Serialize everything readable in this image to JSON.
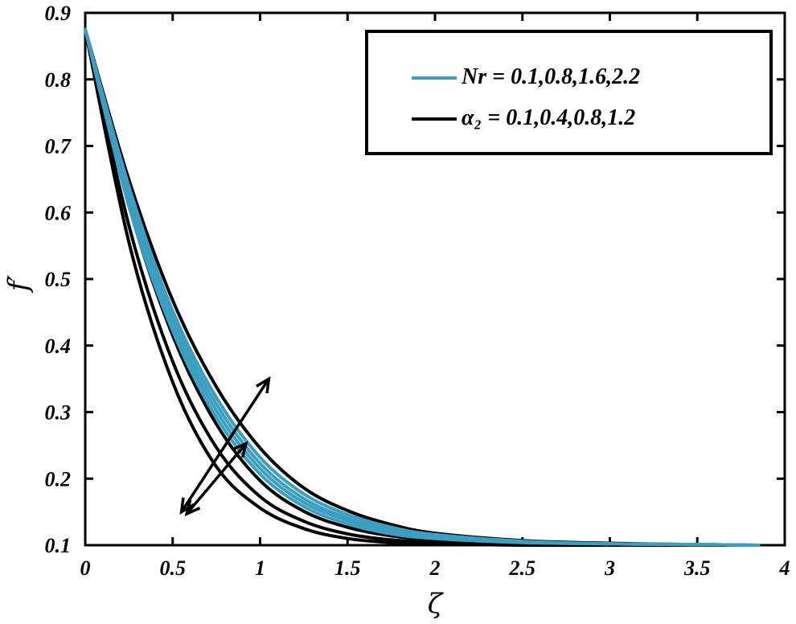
{
  "chart_data": {
    "type": "line",
    "xlabel": "ζ",
    "ylabel": "f′",
    "xlim": [
      0,
      4
    ],
    "ylim": [
      0.1,
      0.9
    ],
    "xticks": [
      0,
      0.5,
      1,
      1.5,
      2,
      2.5,
      3,
      3.5,
      4
    ],
    "xtick_labels": [
      "0",
      "0.5",
      "1",
      "1.5",
      "2",
      "2.5",
      "3",
      "3.5",
      "4"
    ],
    "yticks": [
      0.1,
      0.2,
      0.3,
      0.4,
      0.5,
      0.6,
      0.7,
      0.8,
      0.9
    ],
    "ytick_labels": [
      "0.1",
      "0.2",
      "0.3",
      "0.4",
      "0.5",
      "0.6",
      "0.7",
      "0.8",
      "0.9"
    ],
    "legend_position": "top-right",
    "legend": [
      {
        "label": "Nr = 0.1,0.8,1.6,2.2",
        "color": "#3a9fc0"
      },
      {
        "label": "α₂ = 0.1,0.4,0.8,1.2",
        "color": "#000000"
      }
    ],
    "series_groups": [
      {
        "legend_label": "Nr = 0.1,0.8,1.6,2.2",
        "color": "#3a9fc0",
        "x": [
          0,
          0.25,
          0.5,
          0.75,
          1.0,
          1.25,
          1.5,
          1.75,
          2.0,
          2.5,
          3.0,
          3.5,
          3.85
        ],
        "curves": [
          [
            0.875,
            0.609,
            0.422,
            0.292,
            0.207,
            0.158,
            0.132,
            0.117,
            0.11,
            0.104,
            0.102,
            0.101,
            0.1
          ],
          [
            0.875,
            0.619,
            0.432,
            0.302,
            0.215,
            0.164,
            0.137,
            0.12,
            0.112,
            0.105,
            0.102,
            0.101,
            0.1
          ],
          [
            0.875,
            0.629,
            0.442,
            0.312,
            0.223,
            0.17,
            0.141,
            0.123,
            0.114,
            0.105,
            0.102,
            0.101,
            0.1
          ],
          [
            0.875,
            0.639,
            0.452,
            0.322,
            0.232,
            0.177,
            0.146,
            0.127,
            0.116,
            0.106,
            0.102,
            0.101,
            0.1
          ]
        ]
      },
      {
        "legend_label": "α₂ = 0.1,0.4,0.8,1.2",
        "color": "#000000",
        "x": [
          0,
          0.25,
          0.5,
          0.75,
          1.0,
          1.25,
          1.5,
          1.75,
          2.0,
          2.5,
          3.0,
          3.5,
          3.85
        ],
        "curves": [
          [
            0.875,
            0.649,
            0.468,
            0.338,
            0.246,
            0.186,
            0.152,
            0.131,
            0.118,
            0.107,
            0.103,
            0.101,
            0.1
          ],
          [
            0.875,
            0.61,
            0.415,
            0.282,
            0.197,
            0.151,
            0.127,
            0.114,
            0.108,
            0.103,
            0.101,
            0.1,
            0.1
          ],
          [
            0.875,
            0.58,
            0.376,
            0.247,
            0.173,
            0.136,
            0.117,
            0.108,
            0.104,
            0.101,
            0.1,
            0.1,
            0.1
          ],
          [
            0.875,
            0.555,
            0.345,
            0.218,
            0.156,
            0.125,
            0.11,
            0.104,
            0.102,
            0.1,
            0.1,
            0.1,
            0.1
          ]
        ]
      }
    ],
    "annotations": [
      {
        "type": "double-arrow",
        "from": [
          0.55,
          0.15
        ],
        "to": [
          1.05,
          0.35
        ],
        "meaning": "increasing parameter direction"
      },
      {
        "type": "double-arrow",
        "from": [
          0.58,
          0.147
        ],
        "to": [
          0.92,
          0.253
        ],
        "meaning": "increasing parameter direction"
      }
    ]
  }
}
